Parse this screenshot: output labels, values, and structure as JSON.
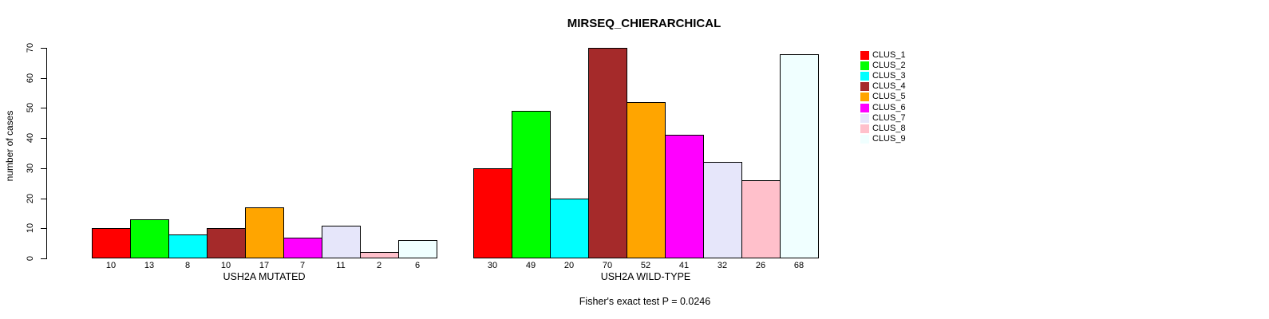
{
  "chart_data": {
    "type": "bar",
    "title": "MIRSEQ_CHIERARCHICAL",
    "ylabel": "number of cases",
    "ylim": [
      0,
      70
    ],
    "yticks": [
      0,
      10,
      20,
      30,
      40,
      50,
      60,
      70
    ],
    "grid": false,
    "legend_position": "right",
    "bar_value_labels_shown": true,
    "categories": [
      "USH2A MUTATED",
      "USH2A WILD-TYPE"
    ],
    "series": [
      {
        "name": "CLUS_1",
        "color": "#ff0000",
        "values": [
          10,
          30
        ]
      },
      {
        "name": "CLUS_2",
        "color": "#00ff00",
        "values": [
          13,
          49
        ]
      },
      {
        "name": "CLUS_3",
        "color": "#00ffff",
        "values": [
          8,
          20
        ]
      },
      {
        "name": "CLUS_4",
        "color": "#a52a2a",
        "values": [
          10,
          70
        ]
      },
      {
        "name": "CLUS_5",
        "color": "#ffa500",
        "values": [
          17,
          52
        ]
      },
      {
        "name": "CLUS_6",
        "color": "#ff00ff",
        "values": [
          7,
          41
        ]
      },
      {
        "name": "CLUS_7",
        "color": "#e6e6fa",
        "values": [
          11,
          32
        ]
      },
      {
        "name": "CLUS_8",
        "color": "#ffc0cb",
        "values": [
          2,
          26
        ]
      },
      {
        "name": "CLUS_9",
        "color": "#f0ffff",
        "values": [
          6,
          68
        ]
      }
    ],
    "annotation": "Fisher's exact test P = 0.0246",
    "colors": {
      "bar_border": "#000000",
      "axis": "#000000",
      "background": "#ffffff"
    }
  }
}
